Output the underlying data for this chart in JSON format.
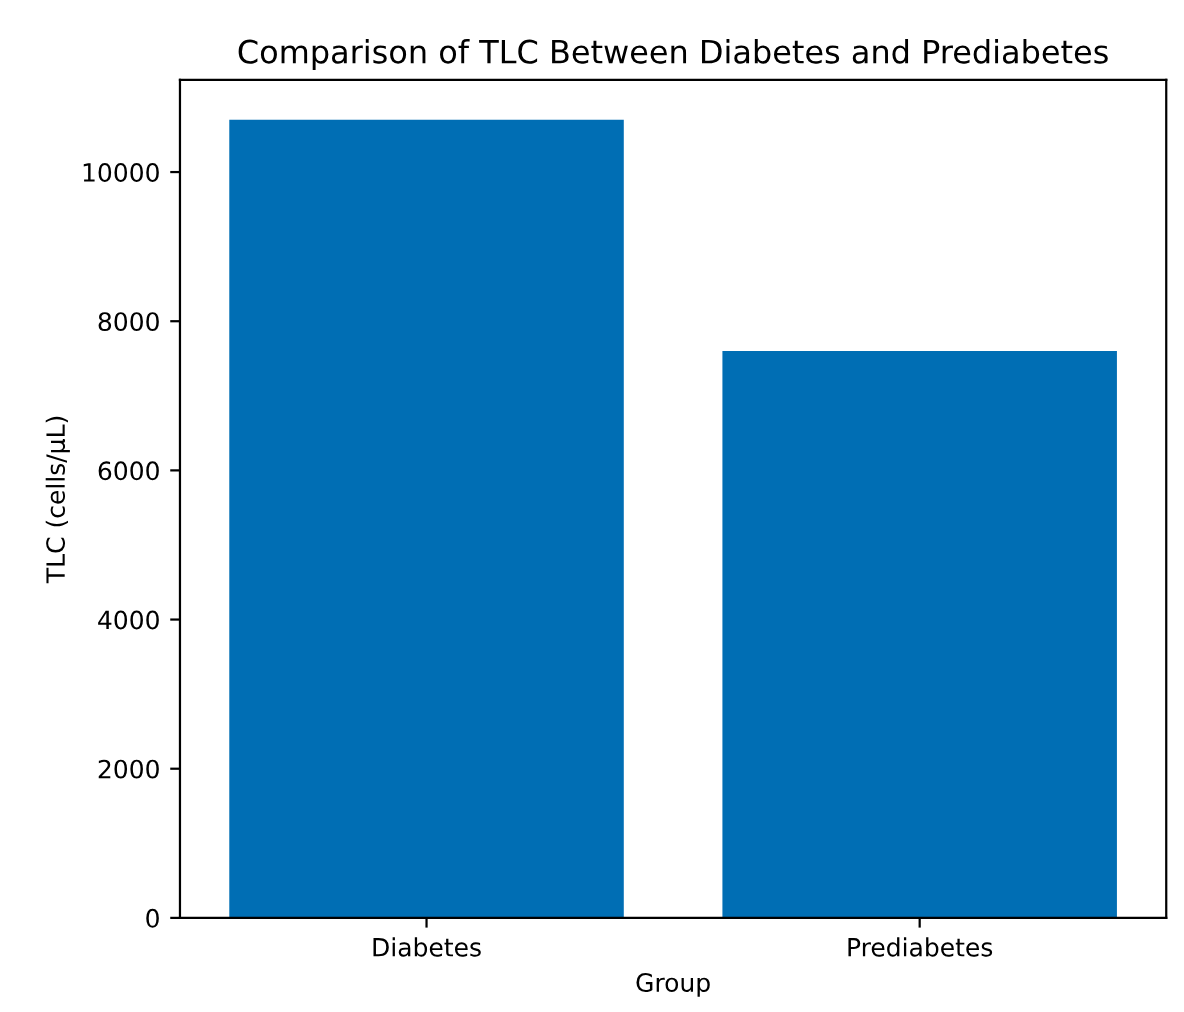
{
  "chart_data": {
    "type": "bar",
    "title": "Comparison of TLC Between Diabetes and Prediabetes",
    "xlabel": "Group",
    "ylabel": "TLC (cells/µL)",
    "categories": [
      "Diabetes",
      "Prediabetes"
    ],
    "values": [
      10700,
      7600
    ],
    "color": "#006eb4",
    "ylim": [
      0,
      11235
    ],
    "yticks": [
      0,
      2000,
      4000,
      6000,
      8000,
      10000
    ],
    "grid": false
  }
}
